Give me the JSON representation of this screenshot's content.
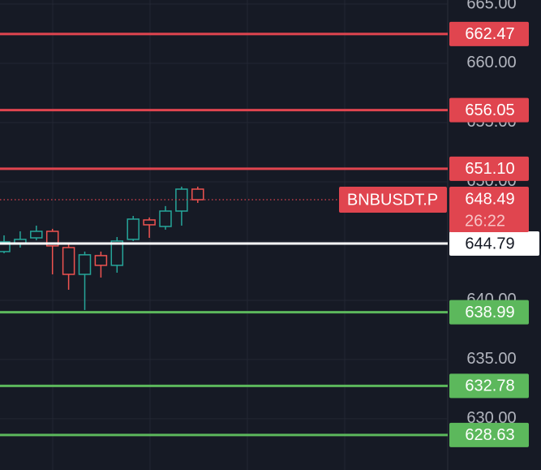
{
  "chart_data": {
    "type": "candlestick",
    "symbol": "BNBUSDT.P",
    "countdown": "26:22",
    "ylim": [
      625.68,
      665.34
    ],
    "yticks": [
      {
        "value": 630,
        "label": "630.00"
      },
      {
        "value": 635,
        "label": "635.00"
      },
      {
        "value": 640,
        "label": "640.00"
      },
      {
        "value": 645,
        "label": "645.00"
      },
      {
        "value": 650,
        "label": "650.00"
      },
      {
        "value": 655,
        "label": "655.00"
      },
      {
        "value": 660,
        "label": "660.00"
      },
      {
        "value": 665,
        "label": "665.00"
      }
    ],
    "up_color": "#26a69a",
    "down_color": "#ef5350",
    "candles": [
      {
        "open": 644.11,
        "high": 645.48,
        "low": 643.97,
        "close": 644.93
      },
      {
        "open": 644.79,
        "high": 645.82,
        "low": 644.45,
        "close": 645.14
      },
      {
        "open": 645.27,
        "high": 646.3,
        "low": 645.07,
        "close": 645.82
      },
      {
        "open": 645.82,
        "high": 646.03,
        "low": 642.19,
        "close": 644.59
      },
      {
        "open": 644.45,
        "high": 644.79,
        "low": 640.89,
        "close": 642.19
      },
      {
        "open": 642.19,
        "high": 644.11,
        "low": 639.18,
        "close": 643.84
      },
      {
        "open": 643.77,
        "high": 644.11,
        "low": 641.92,
        "close": 642.95
      },
      {
        "open": 642.95,
        "high": 645.34,
        "low": 642.33,
        "close": 645.0
      },
      {
        "open": 645.14,
        "high": 647.12,
        "low": 645.0,
        "close": 646.85
      },
      {
        "open": 646.78,
        "high": 646.99,
        "low": 645.27,
        "close": 646.37
      },
      {
        "open": 646.23,
        "high": 647.95,
        "low": 645.96,
        "close": 647.53
      },
      {
        "open": 647.53,
        "high": 649.59,
        "low": 646.3,
        "close": 649.38
      },
      {
        "open": 649.38,
        "high": 649.59,
        "low": 648.22,
        "close": 648.49
      }
    ],
    "last_price": {
      "value": 648.49,
      "color": "#e0454f"
    },
    "price_lines": [
      {
        "value": 662.47,
        "color": "#e0454f"
      },
      {
        "value": 656.05,
        "color": "#e0454f"
      },
      {
        "value": 651.1,
        "label": "651.10",
        "color": "#e0454f"
      },
      {
        "value": 644.79,
        "color": "#ffffff"
      },
      {
        "value": 638.99,
        "color": "#5cb85c"
      },
      {
        "value": 632.78,
        "color": "#5cb85c"
      },
      {
        "value": 628.63,
        "color": "#5cb85c"
      }
    ]
  }
}
